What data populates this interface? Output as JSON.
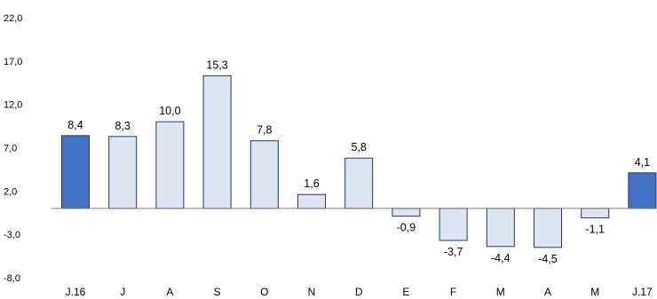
{
  "chart_data": {
    "type": "bar",
    "title": "",
    "xlabel": "",
    "ylabel": "",
    "ylim": [
      -8.0,
      22.0
    ],
    "yticks": [
      22.0,
      17.0,
      12.0,
      7.0,
      2.0,
      -3.0,
      -8.0
    ],
    "ytick_labels": [
      "22,0",
      "17,0",
      "12,0",
      "7,0",
      "2,0",
      "-3,0",
      "-8,0"
    ],
    "categories": [
      "J.16",
      "J",
      "A",
      "S",
      "O",
      "N",
      "D",
      "E",
      "F",
      "M",
      "A",
      "M",
      "J.17"
    ],
    "values": [
      8.4,
      8.3,
      10.0,
      15.3,
      7.8,
      1.6,
      5.8,
      -0.9,
      -3.7,
      -4.4,
      -4.5,
      -1.1,
      4.1
    ],
    "value_labels": [
      "8,4",
      "8,3",
      "10,0",
      "15,3",
      "7,8",
      "1,6",
      "5,8",
      "-0,9",
      "-3,7",
      "-4,4",
      "-4,5",
      "-1,1",
      "4,1"
    ],
    "highlighted": [
      true,
      false,
      false,
      false,
      false,
      false,
      false,
      false,
      false,
      false,
      false,
      false,
      true
    ],
    "grid": false,
    "legend": "none"
  },
  "colors": {
    "highlight_fill": "#4472c4",
    "normal_fill": "#dce6f2",
    "bar_stroke": "#1f3864",
    "axis": "#7f7f7f"
  }
}
